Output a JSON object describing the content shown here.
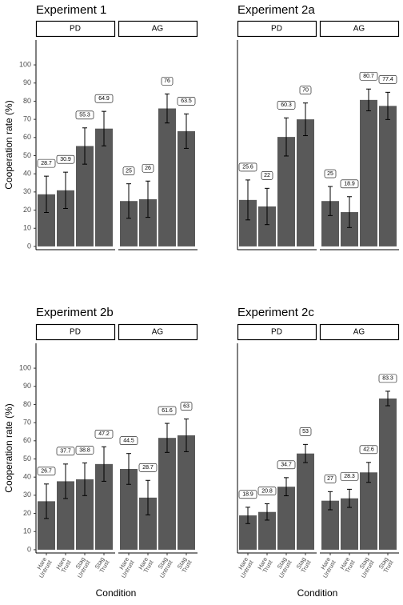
{
  "chart_data": [
    {
      "type": "bar",
      "title": "Experiment 1",
      "ylabel": "Cooperation rate (%)",
      "color": "#595959",
      "ylim": [
        -1.8,
        113.7
      ],
      "yticks": [
        0,
        10,
        20,
        30,
        40,
        50,
        60,
        70,
        80,
        90,
        100
      ],
      "facets": [
        {
          "name": "PD",
          "values": [
            28.7,
            30.9,
            55.3,
            64.9
          ],
          "errors": [
            10,
            10,
            10,
            9.5
          ]
        },
        {
          "name": "AG",
          "values": [
            25,
            26,
            76,
            63.5
          ],
          "errors": [
            9.5,
            10,
            8,
            9.5
          ]
        }
      ]
    },
    {
      "type": "bar",
      "title": "Experiment 2a",
      "color": "#595959",
      "ylim": [
        -1.8,
        113.7
      ],
      "facets": [
        {
          "name": "PD",
          "values": [
            25.6,
            22,
            60.3,
            70
          ],
          "errors": [
            11,
            10,
            10.5,
            9
          ]
        },
        {
          "name": "AG",
          "values": [
            25,
            18.9,
            80.7,
            77.4
          ],
          "errors": [
            8,
            8.5,
            6,
            7.5
          ]
        }
      ]
    },
    {
      "type": "bar",
      "title": "Experiment 2b",
      "ylabel": "Cooperation rate (%)",
      "xlabel": "Condition",
      "color": "#595959",
      "ylim": [
        -1.8,
        113.7
      ],
      "yticks": [
        0,
        10,
        20,
        30,
        40,
        50,
        60,
        70,
        80,
        90,
        100
      ],
      "categories": [
        "Hare Untrust",
        "Hare Trust",
        "Stag Untrust",
        "Stag Trust"
      ],
      "facets": [
        {
          "name": "PD",
          "values": [
            26.7,
            37.7,
            38.8,
            47.2
          ],
          "errors": [
            9.5,
            9.5,
            9,
            9.5
          ]
        },
        {
          "name": "AG",
          "values": [
            44.5,
            28.7,
            61.6,
            63
          ],
          "errors": [
            8.5,
            9.5,
            8,
            9
          ]
        }
      ]
    },
    {
      "type": "bar",
      "title": "Experiment 2c",
      "xlabel": "Condition",
      "color": "#595959",
      "ylim": [
        -1.8,
        113.7
      ],
      "categories": [
        "Hare Untrust",
        "Hare Trust",
        "Stag Untrust",
        "Stag Trust"
      ],
      "facets": [
        {
          "name": "PD",
          "values": [
            18.9,
            20.8,
            34.7,
            53
          ],
          "errors": [
            4.5,
            4.5,
            5,
            5
          ]
        },
        {
          "name": "AG",
          "values": [
            27,
            28.3,
            42.6,
            83.3
          ],
          "errors": [
            5,
            5,
            5.5,
            4
          ]
        }
      ]
    }
  ]
}
